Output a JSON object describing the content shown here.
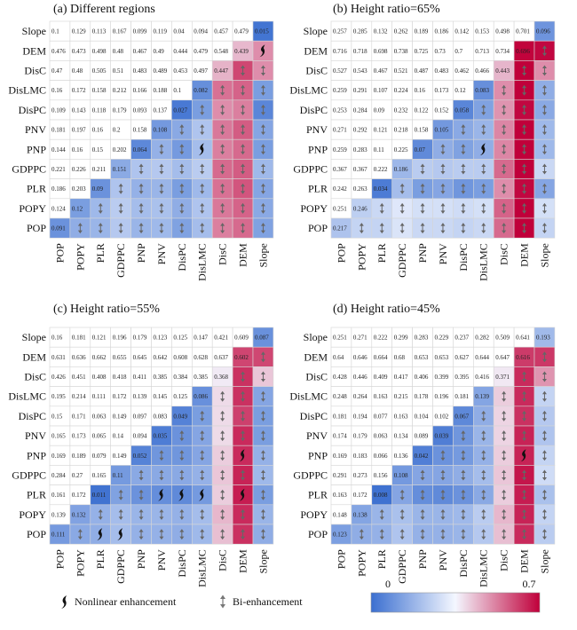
{
  "variables": [
    "POP",
    "POPY",
    "PLR",
    "GDPPC",
    "PNP",
    "PNV",
    "DisPC",
    "DisLMC",
    "DisC",
    "DEM",
    "Slope"
  ],
  "legend": {
    "nonlinear_label": "Nonlinear enhancement",
    "bi_label": "Bi-enhancement",
    "colorbar_min": "0",
    "colorbar_max": "0.7",
    "nonlinear_icon": "nonlinear-enhancement-icon",
    "bi_icon": "bi-enhancement-icon"
  },
  "colors": {
    "low": "#3b6fd0",
    "mid": "#ffffff",
    "high": "#c0003a"
  },
  "chart_data": [
    {
      "type": "heatmap",
      "title": "(a) Different regions",
      "value_range": [
        0,
        0.7
      ],
      "upper": {
        "Slope": [
          0.1,
          0.129,
          0.113,
          0.167,
          0.099,
          0.119,
          0.04,
          0.094,
          0.457,
          0.479
        ],
        "DEM": [
          0.476,
          0.473,
          0.498,
          0.48,
          0.467,
          0.49,
          0.444,
          0.479,
          0.548
        ],
        "DisC": [
          0.47,
          0.48,
          0.505,
          0.51,
          0.483,
          0.489,
          0.453,
          0.497
        ],
        "DisLMC": [
          0.16,
          0.172,
          0.158,
          0.212,
          0.166,
          0.188,
          0.1
        ],
        "DisPC": [
          0.109,
          0.143,
          0.118,
          0.179,
          0.093,
          0.137
        ],
        "PNV": [
          0.181,
          0.197,
          0.16,
          0.2,
          0.158
        ],
        "PNP": [
          0.144,
          0.16,
          0.15,
          0.202
        ],
        "GDPPC": [
          0.221,
          0.226,
          0.211
        ],
        "PLR": [
          0.186,
          0.203
        ],
        "POPY": [
          0.124
        ],
        "POP": []
      },
      "diagonal": [
        0.091,
        0.12,
        0.09,
        0.151,
        0.064,
        0.108,
        0.027,
        0.082,
        0.447,
        0.439,
        0.015
      ],
      "lower_intensity": {
        "POPY": [
          0.16
        ],
        "PLR": [
          0.18,
          0.19
        ],
        "GDPPC": [
          0.23,
          0.24,
          0.22
        ],
        "PNP": [
          0.18,
          0.2,
          0.17,
          0.22
        ],
        "PNV": [
          0.19,
          0.21,
          0.18,
          0.23,
          0.17
        ],
        "DisPC": [
          0.13,
          0.16,
          0.12,
          0.2,
          0.11,
          0.15
        ],
        "DisLMC": [
          0.2,
          0.22,
          0.19,
          0.24,
          0.2,
          0.22,
          0.12
        ],
        "DisC": [
          0.52,
          0.53,
          0.54,
          0.55,
          0.52,
          0.53,
          0.5,
          0.54
        ],
        "DEM": [
          0.55,
          0.56,
          0.58,
          0.57,
          0.55,
          0.57,
          0.52,
          0.56,
          0.6
        ],
        "Slope": [
          0.13,
          0.15,
          0.14,
          0.19,
          0.12,
          0.14,
          0.06,
          0.12,
          0.5,
          0.5
        ]
      },
      "lower_symbols": {
        "POPY": [
          "bi"
        ],
        "PLR": [
          "bi",
          "bi"
        ],
        "GDPPC": [
          "bi",
          "bi",
          "bi"
        ],
        "PNP": [
          "bi",
          "bi",
          "bi",
          "bi"
        ],
        "PNV": [
          "bi",
          "bi",
          "bi",
          "bi",
          "bi"
        ],
        "DisPC": [
          "bi",
          "bi",
          "bi",
          "bi",
          "bi",
          "bi"
        ],
        "DisLMC": [
          "bi",
          "bi",
          "bi",
          "bi",
          "nl",
          "bi",
          "bi"
        ],
        "DisC": [
          "bi",
          "bi",
          "bi",
          "bi",
          "bi",
          "bi",
          "bi",
          "bi"
        ],
        "DEM": [
          "bi",
          "bi",
          "bi",
          "bi",
          "bi",
          "bi",
          "bi",
          "bi",
          "bi"
        ],
        "Slope": [
          "bi",
          "bi",
          "bi",
          "bi",
          "bi",
          "bi",
          "bi",
          "bi",
          "bi",
          "nl"
        ]
      }
    },
    {
      "type": "heatmap",
      "title": "(b) Height ratio=65%",
      "value_range": [
        0,
        0.7
      ],
      "upper": {
        "Slope": [
          0.257,
          0.285,
          0.132,
          0.262,
          0.189,
          0.186,
          0.142,
          0.153,
          0.498,
          0.701
        ],
        "DEM": [
          0.716,
          0.718,
          0.698,
          0.738,
          0.725,
          0.73,
          0.7,
          0.713,
          0.734
        ],
        "DisC": [
          0.527,
          0.543,
          0.467,
          0.521,
          0.487,
          0.483,
          0.462,
          0.466
        ],
        "DisLMC": [
          0.259,
          0.291,
          0.107,
          0.224,
          0.16,
          0.173,
          0.12
        ],
        "DisPC": [
          0.253,
          0.284,
          0.09,
          0.232,
          0.122,
          0.152
        ],
        "PNV": [
          0.271,
          0.292,
          0.121,
          0.218,
          0.158
        ],
        "PNP": [
          0.259,
          0.283,
          0.11,
          0.225
        ],
        "GDPPC": [
          0.367,
          0.367,
          0.222
        ],
        "PLR": [
          0.242,
          0.263
        ],
        "POPY": [
          0.251
        ],
        "POP": []
      },
      "diagonal": [
        0.217,
        0.246,
        0.034,
        0.186,
        0.07,
        0.105,
        0.058,
        0.083,
        0.443,
        0.696,
        0.096
      ],
      "lower_intensity": {
        "POPY": [
          0.26
        ],
        "PLR": [
          0.26,
          0.27
        ],
        "GDPPC": [
          0.3,
          0.31,
          0.2
        ],
        "PNP": [
          0.27,
          0.29,
          0.12,
          0.24
        ],
        "PNV": [
          0.27,
          0.29,
          0.14,
          0.23,
          0.16
        ],
        "DisPC": [
          0.26,
          0.28,
          0.1,
          0.24,
          0.13,
          0.15
        ],
        "DisLMC": [
          0.27,
          0.29,
          0.12,
          0.24,
          0.16,
          0.18,
          0.13
        ],
        "DisC": [
          0.55,
          0.56,
          0.5,
          0.55,
          0.51,
          0.51,
          0.49,
          0.5
        ],
        "DEM": [
          0.7,
          0.7,
          0.69,
          0.71,
          0.7,
          0.7,
          0.69,
          0.7,
          0.7
        ],
        "Slope": [
          0.26,
          0.29,
          0.14,
          0.27,
          0.19,
          0.19,
          0.15,
          0.16,
          0.5,
          0.69
        ]
      },
      "lower_symbols": {
        "POPY": [
          "bi"
        ],
        "PLR": [
          "bi",
          "bi"
        ],
        "GDPPC": [
          "bi",
          "bi",
          "bi"
        ],
        "PNP": [
          "bi",
          "bi",
          "bi",
          "bi"
        ],
        "PNV": [
          "bi",
          "bi",
          "bi",
          "bi",
          "bi"
        ],
        "DisPC": [
          "bi",
          "bi",
          "bi",
          "bi",
          "bi",
          "bi"
        ],
        "DisLMC": [
          "bi",
          "bi",
          "bi",
          "bi",
          "nl",
          "bi",
          "bi"
        ],
        "DisC": [
          "bi",
          "bi",
          "bi",
          "bi",
          "bi",
          "bi",
          "bi",
          "bi"
        ],
        "DEM": [
          "bi",
          "bi",
          "bi",
          "bi",
          "bi",
          "bi",
          "bi",
          "bi",
          "bi"
        ],
        "Slope": [
          "bi",
          "bi",
          "bi",
          "bi",
          "bi",
          "bi",
          "bi",
          "bi",
          "bi",
          "bi"
        ]
      }
    },
    {
      "type": "heatmap",
      "title": "(c) Height ratio=55%",
      "value_range": [
        0,
        0.7
      ],
      "upper": {
        "Slope": [
          0.16,
          0.181,
          0.121,
          0.196,
          0.179,
          0.123,
          0.125,
          0.147,
          0.421,
          0.609
        ],
        "DEM": [
          0.631,
          0.636,
          0.662,
          0.655,
          0.645,
          0.642,
          0.608,
          0.628,
          0.637
        ],
        "DisC": [
          0.426,
          0.451,
          0.408,
          0.418,
          0.411,
          0.385,
          0.384,
          0.385
        ],
        "DisLMC": [
          0.195,
          0.214,
          0.111,
          0.172,
          0.139,
          0.145,
          0.125
        ],
        "DisPC": [
          0.15,
          0.171,
          0.063,
          0.149,
          0.097,
          0.083
        ],
        "PNV": [
          0.165,
          0.173,
          0.065,
          0.14,
          0.094
        ],
        "PNP": [
          0.169,
          0.189,
          0.079,
          0.149
        ],
        "GDPPC": [
          0.284,
          0.27,
          0.165
        ],
        "PLR": [
          0.161,
          0.172
        ],
        "POPY": [
          0.139
        ],
        "POP": []
      },
      "diagonal": [
        0.111,
        0.132,
        0.011,
        0.11,
        0.052,
        0.035,
        0.049,
        0.086,
        0.368,
        0.602,
        0.087
      ],
      "lower_intensity": {
        "POPY": [
          0.15
        ],
        "PLR": [
          0.16,
          0.17
        ],
        "GDPPC": [
          0.2,
          0.2,
          0.13
        ],
        "PNP": [
          0.17,
          0.18,
          0.09,
          0.15
        ],
        "PNV": [
          0.17,
          0.18,
          0.08,
          0.15,
          0.1
        ],
        "DisPC": [
          0.16,
          0.17,
          0.07,
          0.15,
          0.1,
          0.09
        ],
        "DisLMC": [
          0.19,
          0.2,
          0.11,
          0.17,
          0.14,
          0.14,
          0.12
        ],
        "DisC": [
          0.43,
          0.44,
          0.41,
          0.42,
          0.41,
          0.39,
          0.39,
          0.39
        ],
        "DEM": [
          0.63,
          0.64,
          0.66,
          0.65,
          0.64,
          0.64,
          0.61,
          0.63,
          0.63
        ],
        "Slope": [
          0.16,
          0.18,
          0.12,
          0.19,
          0.17,
          0.12,
          0.12,
          0.14,
          0.42,
          0.6
        ]
      },
      "lower_symbols": {
        "POPY": [
          "bi"
        ],
        "PLR": [
          "nl",
          "bi"
        ],
        "GDPPC": [
          "nl",
          "bi",
          "bi"
        ],
        "PNP": [
          "bi",
          "bi",
          "bi",
          "bi"
        ],
        "PNV": [
          "bi",
          "bi",
          "nl",
          "bi",
          "bi"
        ],
        "DisPC": [
          "bi",
          "bi",
          "nl",
          "bi",
          "bi",
          "bi"
        ],
        "DisLMC": [
          "bi",
          "bi",
          "nl",
          "bi",
          "bi",
          "bi",
          "bi"
        ],
        "DisC": [
          "bi",
          "bi",
          "bi",
          "bi",
          "bi",
          "bi",
          "bi",
          "bi"
        ],
        "DEM": [
          "bi",
          "bi",
          "nl",
          "bi",
          "nl",
          "bi",
          "bi",
          "bi",
          "bi"
        ],
        "Slope": [
          "bi",
          "bi",
          "bi",
          "bi",
          "bi",
          "bi",
          "bi",
          "bi",
          "bi",
          "bi"
        ]
      }
    },
    {
      "type": "heatmap",
      "title": "(d) Height ratio=45%",
      "value_range": [
        0,
        0.7
      ],
      "upper": {
        "Slope": [
          0.251,
          0.271,
          0.222,
          0.299,
          0.283,
          0.229,
          0.237,
          0.282,
          0.509,
          0.641
        ],
        "DEM": [
          0.64,
          0.646,
          0.664,
          0.68,
          0.653,
          0.653,
          0.627,
          0.644,
          0.647
        ],
        "DisC": [
          0.428,
          0.446,
          0.409,
          0.417,
          0.406,
          0.399,
          0.395,
          0.416
        ],
        "DisLMC": [
          0.248,
          0.264,
          0.163,
          0.215,
          0.178,
          0.196,
          0.181
        ],
        "DisPC": [
          0.181,
          0.194,
          0.077,
          0.163,
          0.104,
          0.102
        ],
        "PNV": [
          0.174,
          0.179,
          0.063,
          0.134,
          0.089
        ],
        "PNP": [
          0.169,
          0.183,
          0.066,
          0.136
        ],
        "GDPPC": [
          0.291,
          0.273,
          0.156
        ],
        "PLR": [
          0.163,
          0.172
        ],
        "POPY": [
          0.148
        ],
        "POP": []
      },
      "diagonal": [
        0.123,
        0.138,
        0.008,
        0.108,
        0.042,
        0.039,
        0.067,
        0.139,
        0.371,
        0.616,
        0.193
      ],
      "lower_intensity": {
        "POPY": [
          0.16
        ],
        "PLR": [
          0.17,
          0.18
        ],
        "GDPPC": [
          0.22,
          0.21,
          0.14
        ],
        "PNP": [
          0.17,
          0.18,
          0.08,
          0.14
        ],
        "PNV": [
          0.17,
          0.18,
          0.07,
          0.14,
          0.09
        ],
        "DisPC": [
          0.18,
          0.19,
          0.09,
          0.16,
          0.11,
          0.1
        ],
        "DisLMC": [
          0.23,
          0.24,
          0.15,
          0.2,
          0.17,
          0.18,
          0.16
        ],
        "DisC": [
          0.43,
          0.44,
          0.41,
          0.42,
          0.41,
          0.4,
          0.4,
          0.41
        ],
        "DEM": [
          0.64,
          0.65,
          0.66,
          0.67,
          0.65,
          0.65,
          0.63,
          0.64,
          0.64
        ],
        "Slope": [
          0.24,
          0.26,
          0.21,
          0.28,
          0.26,
          0.22,
          0.23,
          0.26,
          0.49,
          0.62
        ]
      },
      "lower_symbols": {
        "POPY": [
          "bi"
        ],
        "PLR": [
          "bi",
          "bi"
        ],
        "GDPPC": [
          "bi",
          "bi",
          "bi"
        ],
        "PNP": [
          "bi",
          "bi",
          "bi",
          "bi"
        ],
        "PNV": [
          "bi",
          "bi",
          "bi",
          "bi",
          "bi"
        ],
        "DisPC": [
          "bi",
          "bi",
          "bi",
          "bi",
          "bi",
          "bi"
        ],
        "DisLMC": [
          "bi",
          "bi",
          "bi",
          "bi",
          "bi",
          "bi",
          "bi"
        ],
        "DisC": [
          "bi",
          "bi",
          "bi",
          "bi",
          "bi",
          "bi",
          "bi",
          "bi"
        ],
        "DEM": [
          "bi",
          "bi",
          "bi",
          "bi",
          "nl",
          "bi",
          "bi",
          "bi",
          "bi"
        ],
        "Slope": [
          "bi",
          "bi",
          "bi",
          "bi",
          "bi",
          "bi",
          "bi",
          "bi",
          "bi",
          "bi"
        ]
      }
    }
  ]
}
